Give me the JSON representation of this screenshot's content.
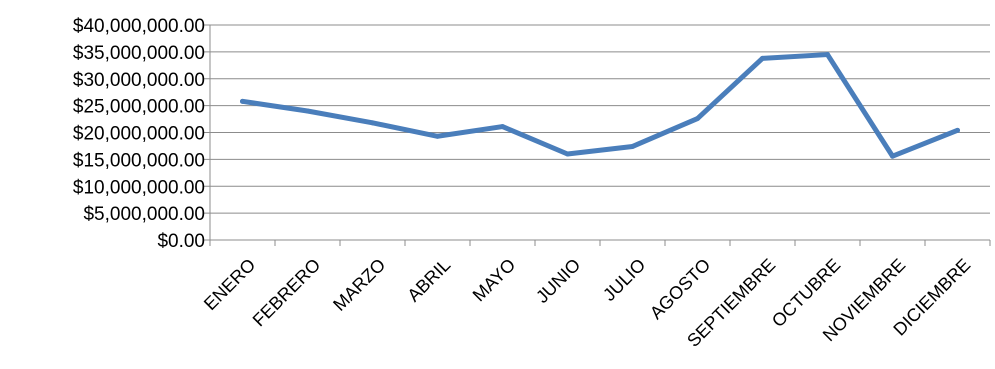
{
  "chart_data": {
    "type": "line",
    "title": "",
    "xlabel": "",
    "ylabel": "",
    "categories": [
      "ENERO",
      "FEBRERO",
      "MARZO",
      "ABRIL",
      "MAYO",
      "JUNIO",
      "JULIO",
      "AGOSTO",
      "SEPTIEMBRE",
      "OCTUBRE",
      "NOVIEMBRE",
      "DICIEMBRE"
    ],
    "series": [
      {
        "values": [
          25800000,
          24000000,
          21800000,
          19300000,
          21100000,
          16000000,
          17400000,
          22600000,
          33800000,
          34500000,
          15600000,
          20400000
        ],
        "color": "#4a7ebb"
      }
    ],
    "ylim": [
      0,
      40000000
    ],
    "yticks": [
      0,
      5000000,
      10000000,
      15000000,
      20000000,
      25000000,
      30000000,
      35000000,
      40000000
    ],
    "ytick_labels": [
      "$0.00",
      "$5,000,000.00",
      "$10,000,000.00",
      "$15,000,000.00",
      "$20,000,000.00",
      "$25,000,000.00",
      "$30,000,000.00",
      "$35,000,000.00",
      "$40,000,000.00"
    ],
    "grid": true,
    "legend": "none",
    "gridline_color": "#8c8c8c"
  }
}
